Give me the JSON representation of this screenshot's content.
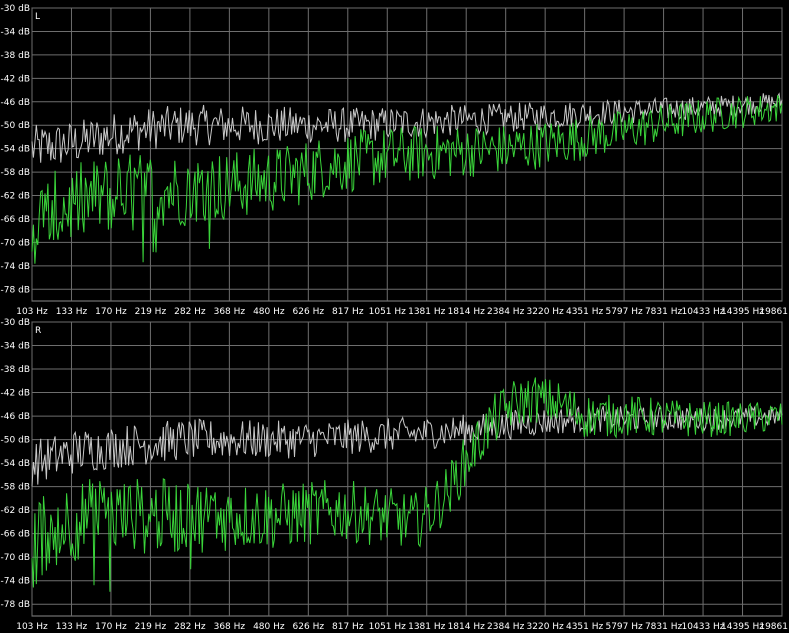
{
  "chart_data": [
    {
      "type": "line",
      "channel_label": "L",
      "x_scale": "log",
      "x_unit": "Hz",
      "xlim": [
        103,
        19861
      ],
      "ylim": [
        -80,
        -30
      ],
      "grid": true,
      "y_ticks": [
        "-30 dB",
        "-34 dB",
        "-38 dB",
        "-42 dB",
        "-46 dB",
        "-50 dB",
        "-54 dB",
        "-58 dB",
        "-62 dB",
        "-66 dB",
        "-70 dB",
        "-74 dB",
        "-78 dB"
      ],
      "x_ticks": [
        "103 Hz",
        "133 Hz",
        "170 Hz",
        "219 Hz",
        "282 Hz",
        "368 Hz",
        "480 Hz",
        "626 Hz",
        "817 Hz",
        "1051 Hz",
        "1381 Hz",
        "1814 Hz",
        "2384 Hz",
        "3220 Hz",
        "4351 Hz",
        "5797 Hz",
        "7831 Hz",
        "10433 Hz",
        "14395 Hz",
        "19861"
      ],
      "series": [
        {
          "color": "#c8c8c8",
          "x": [
            103,
            140,
            200,
            300,
            450,
            700,
            1000,
            1500,
            2400,
            3500,
            5000,
            7500,
            11000,
            15000,
            19861
          ],
          "y": [
            -54,
            -53,
            -51,
            -50,
            -50,
            -50,
            -50,
            -49.5,
            -49,
            -48.5,
            -48,
            -47.5,
            -47,
            -46.5,
            -46
          ]
        },
        {
          "color": "#3ad43a",
          "x": [
            103,
            130,
            170,
            220,
            300,
            450,
            600,
            800,
            1000,
            1400,
            2000,
            3000,
            4500,
            6500,
            9000,
            13000,
            19861
          ],
          "y": [
            -67,
            -64,
            -62,
            -61,
            -61,
            -60,
            -59,
            -57,
            -56,
            -55,
            -54.5,
            -54,
            -52.5,
            -51,
            -49.5,
            -48,
            -47
          ]
        }
      ]
    },
    {
      "type": "line",
      "channel_label": "R",
      "x_scale": "log",
      "x_unit": "Hz",
      "xlim": [
        103,
        19861
      ],
      "ylim": [
        -80,
        -30
      ],
      "grid": true,
      "y_ticks": [
        "-30 dB",
        "-34 dB",
        "-38 dB",
        "-42 dB",
        "-46 dB",
        "-50 dB",
        "-54 dB",
        "-58 dB",
        "-62 dB",
        "-66 dB",
        "-70 dB",
        "-74 dB",
        "-78 dB"
      ],
      "x_ticks": [
        "103 Hz",
        "133 Hz",
        "170 Hz",
        "219 Hz",
        "282 Hz",
        "368 Hz",
        "480 Hz",
        "626 Hz",
        "817 Hz",
        "1051 Hz",
        "1381 Hz",
        "1814 Hz",
        "2384 Hz",
        "3220 Hz",
        "4351 Hz",
        "5797 Hz",
        "7831 Hz",
        "10433 Hz",
        "14395 Hz",
        "19861"
      ],
      "series": [
        {
          "color": "#c8c8c8",
          "x": [
            103,
            140,
            200,
            300,
            450,
            700,
            1000,
            1500,
            2000,
            2500,
            3500,
            5000,
            8000,
            12000,
            19861
          ],
          "y": [
            -54,
            -52,
            -51,
            -50,
            -50,
            -50,
            -49.5,
            -49,
            -48.5,
            -48,
            -47,
            -46.5,
            -46.5,
            -46.5,
            -46
          ]
        },
        {
          "color": "#3ad43a",
          "x": [
            103,
            130,
            170,
            250,
            400,
            600,
            900,
            1200,
            1500,
            1700,
            1900,
            2200,
            2600,
            3000,
            3500,
            4200,
            5000,
            7000,
            10000,
            15000,
            19861
          ],
          "y": [
            -67,
            -64,
            -63,
            -63,
            -63,
            -63,
            -62,
            -63,
            -64,
            -62,
            -59,
            -53,
            -47,
            -44,
            -43,
            -44,
            -46,
            -46,
            -46.5,
            -46.5,
            -46
          ]
        }
      ]
    }
  ]
}
